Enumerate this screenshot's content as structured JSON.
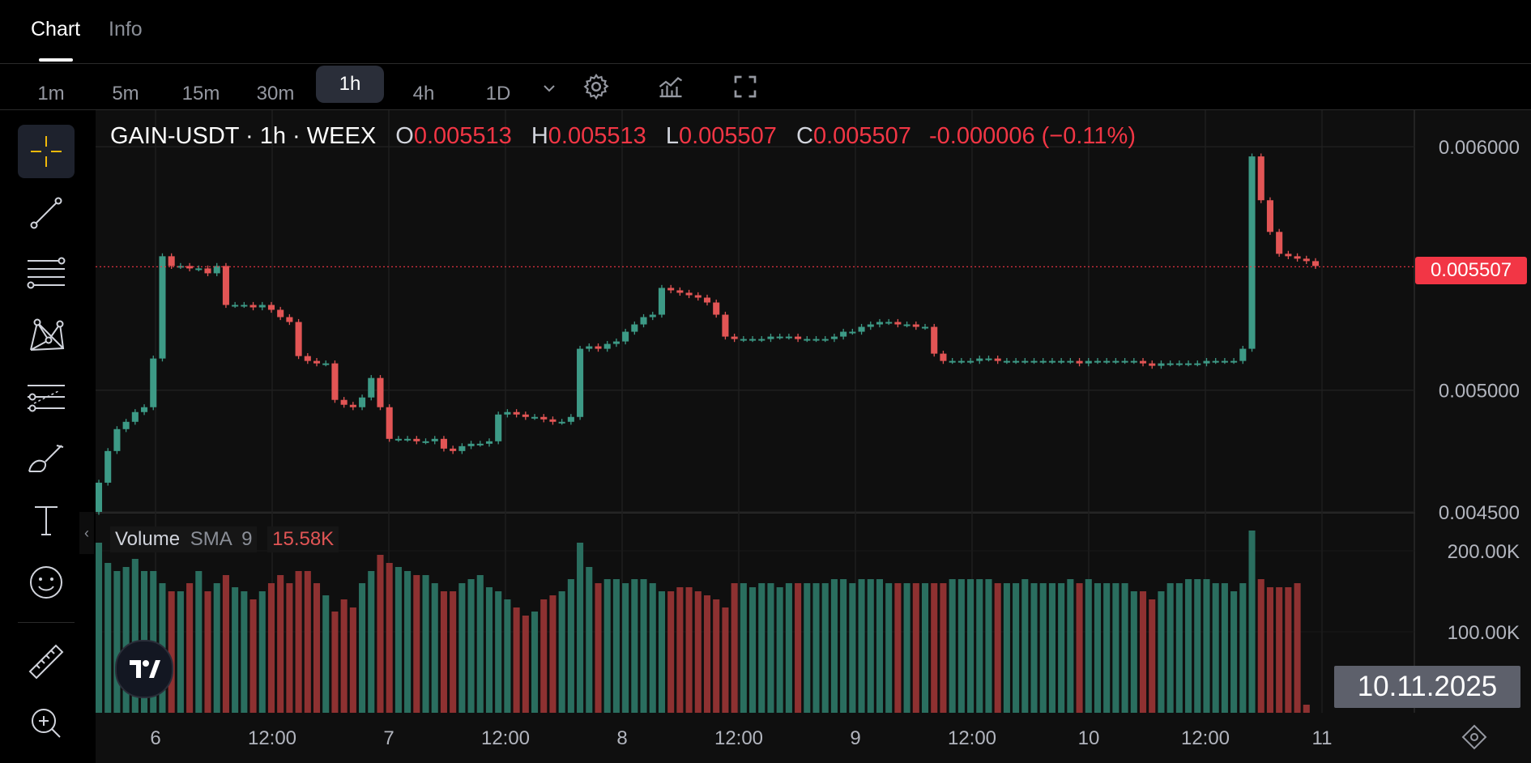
{
  "tabs": [
    {
      "label": "Chart"
    },
    {
      "label": "Info"
    }
  ],
  "timeframes": [
    {
      "label": "1m"
    },
    {
      "label": "5m"
    },
    {
      "label": "15m"
    },
    {
      "label": "30m"
    },
    {
      "label": "1h"
    },
    {
      "label": "4h"
    },
    {
      "label": "1D"
    }
  ],
  "active_timeframe": "1h",
  "legend": {
    "symbol": "GAIN-USDT · 1h · WEEX",
    "o_label": "O",
    "o": "0.005513",
    "h_label": "H",
    "h": "0.005513",
    "l_label": "L",
    "l": "0.005507",
    "c_label": "C",
    "c": "0.005507",
    "change": "-0.000006 (−0.11%)"
  },
  "volume_legend": {
    "label": "Volume",
    "sma_label": "SMA",
    "sma_period": "9",
    "sma_value": "15.58K"
  },
  "last_price_tag": "0.005507",
  "crosshair_date": "10.11.2025",
  "colors": {
    "up": "#3d9a86",
    "down": "#e25555",
    "vol_up": "#2a6e5f",
    "vol_down": "#8e3131",
    "last_line": "#f23645"
  },
  "chart_data": {
    "type": "candlestick",
    "symbol": "GAIN-USDT",
    "interval": "1h",
    "exchange": "WEEX",
    "y_axis_ticks": [
      "0.006000",
      "0.005000",
      "0.004500"
    ],
    "ylim": [
      0.0045,
      0.00615
    ],
    "x_axis_ticks": [
      "6",
      "12:00",
      "7",
      "12:00",
      "8",
      "12:00",
      "9",
      "12:00",
      "10",
      "12:00",
      "11"
    ],
    "volume_axis_ticks": [
      "200.00K",
      "100.00K"
    ],
    "volume_ylim": [
      0,
      240000
    ],
    "close_series": [
      0.00462,
      0.00475,
      0.00484,
      0.00487,
      0.00491,
      0.00493,
      0.00513,
      0.00555,
      0.00551,
      0.00551,
      0.0055,
      0.0055,
      0.00548,
      0.00551,
      0.00535,
      0.00535,
      0.00535,
      0.00534,
      0.00535,
      0.00533,
      0.0053,
      0.00528,
      0.00514,
      0.00512,
      0.00511,
      0.00511,
      0.00496,
      0.00494,
      0.00493,
      0.00497,
      0.00505,
      0.00493,
      0.0048,
      0.0048,
      0.0048,
      0.00479,
      0.00479,
      0.0048,
      0.00476,
      0.00475,
      0.00477,
      0.00478,
      0.00478,
      0.00479,
      0.0049,
      0.00491,
      0.0049,
      0.00489,
      0.00489,
      0.00488,
      0.00487,
      0.00487,
      0.00489,
      0.00517,
      0.00518,
      0.00517,
      0.00519,
      0.0052,
      0.00524,
      0.00527,
      0.0053,
      0.00531,
      0.00542,
      0.00541,
      0.0054,
      0.00539,
      0.00538,
      0.00536,
      0.00531,
      0.00522,
      0.00521,
      0.00521,
      0.00521,
      0.00521,
      0.00522,
      0.00522,
      0.00522,
      0.00521,
      0.00521,
      0.00521,
      0.00521,
      0.00522,
      0.00524,
      0.00524,
      0.00526,
      0.00527,
      0.00528,
      0.00528,
      0.00527,
      0.00527,
      0.00526,
      0.00526,
      0.00515,
      0.00512,
      0.00512,
      0.00512,
      0.00512,
      0.00513,
      0.00513,
      0.00512,
      0.00512,
      0.00512,
      0.00512,
      0.00512,
      0.00512,
      0.00512,
      0.00512,
      0.00512,
      0.00511,
      0.00512,
      0.00512,
      0.00512,
      0.00512,
      0.00512,
      0.00512,
      0.00511,
      0.0051,
      0.00511,
      0.00511,
      0.00511,
      0.00511,
      0.00511,
      0.00512,
      0.00512,
      0.00512,
      0.00512,
      0.00517,
      0.00596,
      0.00578,
      0.00565,
      0.00556,
      0.00555,
      0.00554,
      0.00553,
      0.00551
    ],
    "volume_series": [
      210,
      185,
      175,
      180,
      190,
      175,
      175,
      160,
      150,
      150,
      160,
      175,
      150,
      160,
      170,
      155,
      150,
      140,
      150,
      160,
      170,
      160,
      175,
      175,
      160,
      145,
      125,
      140,
      130,
      160,
      175,
      195,
      185,
      180,
      175,
      170,
      170,
      160,
      150,
      150,
      160,
      165,
      170,
      155,
      150,
      140,
      130,
      120,
      125,
      140,
      145,
      150,
      165,
      210,
      180,
      160,
      165,
      165,
      160,
      165,
      165,
      160,
      150,
      150,
      155,
      155,
      150,
      145,
      140,
      130,
      160,
      160,
      155,
      160,
      160,
      155,
      160,
      160,
      160,
      160,
      160,
      165,
      165,
      160,
      165,
      165,
      165,
      160,
      160,
      160,
      160,
      160,
      160,
      160,
      165,
      165,
      165,
      165,
      165,
      160,
      160,
      160,
      165,
      160,
      160,
      160,
      160,
      165,
      160,
      165,
      160,
      160,
      160,
      160,
      150,
      150,
      140,
      150,
      160,
      160,
      165,
      165,
      165,
      160,
      160,
      150,
      160,
      225,
      165,
      155,
      155,
      155,
      160,
      10
    ]
  }
}
